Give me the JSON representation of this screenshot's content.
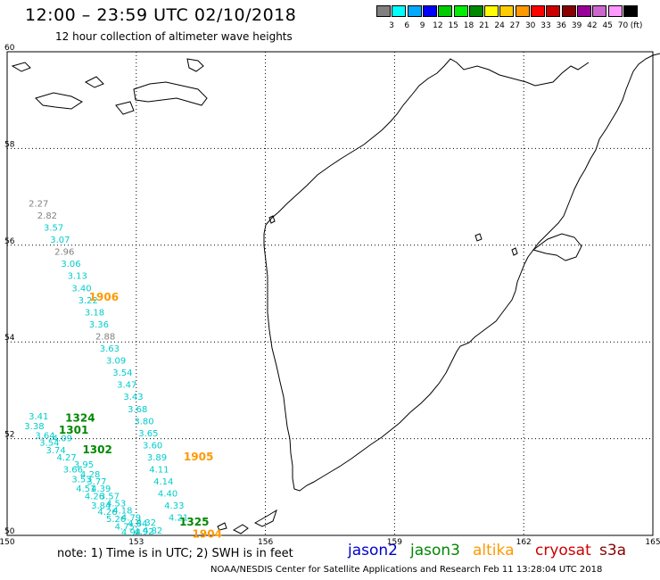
{
  "header": {
    "title": "12:00 – 23:59 UTC 02/10/2018",
    "subtitle": "12 hour collection of altimeter wave heights"
  },
  "color_scale": {
    "colors": [
      "#808080",
      "#00ffff",
      "#00aaff",
      "#0000ff",
      "#00cc00",
      "#00ee00",
      "#008800",
      "#ffff00",
      "#ffcc00",
      "#ff9900",
      "#ff0000",
      "#cc0000",
      "#880000",
      "#990099",
      "#cc66cc",
      "#ff99ff",
      "#000000"
    ],
    "labels": [
      "3",
      "6",
      "9",
      "12",
      "15",
      "18",
      "21",
      "24",
      "27",
      "30",
      "33",
      "36",
      "39",
      "42",
      "45",
      "70"
    ],
    "unit": "(ft)"
  },
  "chart_data": {
    "type": "scatter",
    "x_range": [
      150,
      165
    ],
    "y_range": [
      50,
      60
    ],
    "x_ticks": [
      "150",
      "153",
      "156",
      "159",
      "162",
      "165"
    ],
    "y_ticks": [
      "50",
      "52",
      "54",
      "56",
      "58",
      "60"
    ],
    "grid": true,
    "points": [
      {
        "lon": 150.5,
        "lat": 56.8,
        "label": "2.27",
        "color": "#808080"
      },
      {
        "lon": 150.7,
        "lat": 56.55,
        "label": "2.82",
        "color": "#808080"
      },
      {
        "lon": 150.85,
        "lat": 56.3,
        "label": "3.57",
        "color": "#00cccc"
      },
      {
        "lon": 151.0,
        "lat": 56.05,
        "label": "3.07",
        "color": "#00cccc"
      },
      {
        "lon": 151.1,
        "lat": 55.8,
        "label": "2.96",
        "color": "#808080"
      },
      {
        "lon": 151.25,
        "lat": 55.55,
        "label": "3.06",
        "color": "#00cccc"
      },
      {
        "lon": 151.4,
        "lat": 55.3,
        "label": "3.13",
        "color": "#00cccc"
      },
      {
        "lon": 151.5,
        "lat": 55.05,
        "label": "3.40",
        "color": "#00cccc"
      },
      {
        "lon": 151.65,
        "lat": 54.8,
        "label": "3.22",
        "color": "#00cccc"
      },
      {
        "lon": 151.8,
        "lat": 54.55,
        "label": "3.18",
        "color": "#00cccc"
      },
      {
        "lon": 151.9,
        "lat": 54.3,
        "label": "3.36",
        "color": "#00cccc"
      },
      {
        "lon": 152.05,
        "lat": 54.05,
        "label": "2.88",
        "color": "#808080"
      },
      {
        "lon": 152.15,
        "lat": 53.8,
        "label": "3.63",
        "color": "#00cccc"
      },
      {
        "lon": 152.3,
        "lat": 53.55,
        "label": "3.09",
        "color": "#00cccc"
      },
      {
        "lon": 152.45,
        "lat": 53.3,
        "label": "3.54",
        "color": "#00cccc"
      },
      {
        "lon": 152.55,
        "lat": 53.05,
        "label": "3.47",
        "color": "#00cccc"
      },
      {
        "lon": 152.7,
        "lat": 52.8,
        "label": "3.43",
        "color": "#00cccc"
      },
      {
        "lon": 152.8,
        "lat": 52.55,
        "label": "3.68",
        "color": "#00cccc"
      },
      {
        "lon": 152.95,
        "lat": 52.3,
        "label": "3.80",
        "color": "#00cccc"
      },
      {
        "lon": 153.05,
        "lat": 52.05,
        "label": "3.65",
        "color": "#00cccc"
      },
      {
        "lon": 153.15,
        "lat": 51.8,
        "label": "3.60",
        "color": "#00cccc"
      },
      {
        "lon": 153.25,
        "lat": 51.55,
        "label": "3.89",
        "color": "#00cccc"
      },
      {
        "lon": 153.3,
        "lat": 51.3,
        "label": "4.11",
        "color": "#00cccc"
      },
      {
        "lon": 153.4,
        "lat": 51.05,
        "label": "4.14",
        "color": "#00cccc"
      },
      {
        "lon": 153.5,
        "lat": 50.8,
        "label": "4.40",
        "color": "#00cccc"
      },
      {
        "lon": 153.65,
        "lat": 50.55,
        "label": "4.33",
        "color": "#00cccc"
      },
      {
        "lon": 153.75,
        "lat": 50.3,
        "label": "4.21",
        "color": "#00cccc"
      },
      {
        "lon": 150.5,
        "lat": 52.4,
        "label": "3.41",
        "color": "#00cccc"
      },
      {
        "lon": 150.4,
        "lat": 52.2,
        "label": "3.38",
        "color": "#00cccc"
      },
      {
        "lon": 150.65,
        "lat": 52.0,
        "label": "3.64",
        "color": "#00cccc"
      },
      {
        "lon": 150.75,
        "lat": 51.85,
        "label": "3.54",
        "color": "#00cccc"
      },
      {
        "lon": 151.05,
        "lat": 51.95,
        "label": "4.09",
        "color": "#00cccc"
      },
      {
        "lon": 150.9,
        "lat": 51.7,
        "label": "3.74",
        "color": "#00cccc"
      },
      {
        "lon": 151.15,
        "lat": 51.55,
        "label": "4.27",
        "color": "#00cccc"
      },
      {
        "lon": 151.3,
        "lat": 51.3,
        "label": "3.66",
        "color": "#00cccc"
      },
      {
        "lon": 151.55,
        "lat": 51.4,
        "label": "3.95",
        "color": "#00cccc"
      },
      {
        "lon": 151.7,
        "lat": 51.2,
        "label": "4.28",
        "color": "#00cccc"
      },
      {
        "lon": 151.5,
        "lat": 51.1,
        "label": "3.53",
        "color": "#00cccc"
      },
      {
        "lon": 151.85,
        "lat": 51.05,
        "label": "3.77",
        "color": "#00cccc"
      },
      {
        "lon": 151.6,
        "lat": 50.9,
        "label": "4.51",
        "color": "#00cccc"
      },
      {
        "lon": 151.95,
        "lat": 50.9,
        "label": "4.39",
        "color": "#00cccc"
      },
      {
        "lon": 151.8,
        "lat": 50.75,
        "label": "4.26",
        "color": "#00cccc"
      },
      {
        "lon": 152.15,
        "lat": 50.75,
        "label": "3.57",
        "color": "#00cccc"
      },
      {
        "lon": 151.95,
        "lat": 50.55,
        "label": "3.84",
        "color": "#00cccc"
      },
      {
        "lon": 152.3,
        "lat": 50.6,
        "label": "4.53",
        "color": "#00cccc"
      },
      {
        "lon": 152.1,
        "lat": 50.42,
        "label": "4.26",
        "color": "#00cccc"
      },
      {
        "lon": 152.45,
        "lat": 50.45,
        "label": "4.18",
        "color": "#00cccc"
      },
      {
        "lon": 152.3,
        "lat": 50.28,
        "label": "5.26",
        "color": "#00cccc"
      },
      {
        "lon": 152.65,
        "lat": 50.3,
        "label": "4.79",
        "color": "#00cccc"
      },
      {
        "lon": 152.5,
        "lat": 50.12,
        "label": "4.75",
        "color": "#00cccc"
      },
      {
        "lon": 152.8,
        "lat": 50.18,
        "label": "4.84",
        "color": "#00cccc"
      },
      {
        "lon": 153.0,
        "lat": 50.2,
        "label": "4.32",
        "color": "#00cccc"
      },
      {
        "lon": 152.65,
        "lat": 50.0,
        "label": "4.94",
        "color": "#00cccc"
      },
      {
        "lon": 152.95,
        "lat": 50.02,
        "label": "4.92",
        "color": "#00cccc"
      },
      {
        "lon": 153.15,
        "lat": 50.04,
        "label": "4.82",
        "color": "#00cccc"
      }
    ],
    "tracks": [
      {
        "label": "1906",
        "lon": 151.9,
        "lat": 54.85,
        "color": "#ff9900"
      },
      {
        "label": "1324",
        "lon": 151.35,
        "lat": 52.35,
        "color": "#008800"
      },
      {
        "label": "1301",
        "lon": 151.2,
        "lat": 52.1,
        "color": "#008800"
      },
      {
        "label": "1302",
        "lon": 151.75,
        "lat": 51.7,
        "color": "#008800"
      },
      {
        "label": "1905",
        "lon": 154.1,
        "lat": 51.55,
        "color": "#ff9900"
      },
      {
        "label": "1325",
        "lon": 154.0,
        "lat": 50.2,
        "color": "#008800"
      },
      {
        "label": "1904",
        "lon": 154.3,
        "lat": 49.95,
        "color": "#ff9900"
      }
    ]
  },
  "footer": {
    "note": "note:  1) Time is in UTC;  2) SWH is in feet",
    "satellites": [
      {
        "name": "jason2",
        "color": "#0000cc"
      },
      {
        "name": "jason3",
        "color": "#008800"
      },
      {
        "name": "altika",
        "color": "#ff9900"
      },
      {
        "name": "cryosat",
        "color": "#cc0000"
      },
      {
        "name": "s3a",
        "color": "#880000"
      }
    ],
    "credit": "NOAA/NESDIS Center for Satellite Applications and Research     Feb 11 13:28:04 UTC 2018"
  }
}
